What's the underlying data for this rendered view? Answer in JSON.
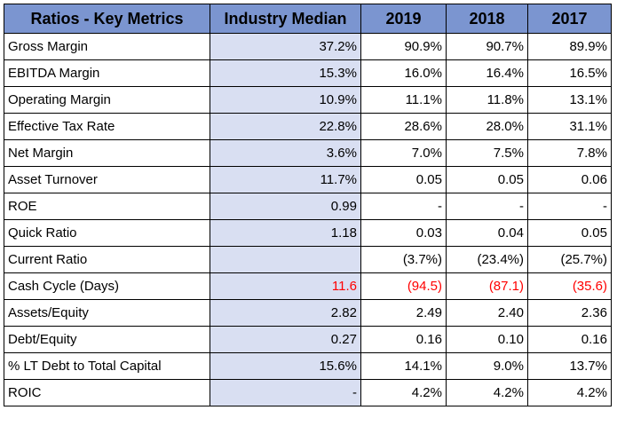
{
  "table": {
    "headers": [
      "Ratios - Key Metrics",
      "Industry Median",
      "2019",
      "2018",
      "2017"
    ],
    "rows": [
      {
        "metric": "Gross Margin",
        "median": "37.2%",
        "y2019": "90.9%",
        "y2018": "90.7%",
        "y2017": "89.9%"
      },
      {
        "metric": "EBITDA Margin",
        "median": "15.3%",
        "y2019": "16.0%",
        "y2018": "16.4%",
        "y2017": "16.5%"
      },
      {
        "metric": "Operating Margin",
        "median": "10.9%",
        "y2019": "11.1%",
        "y2018": "11.8%",
        "y2017": "13.1%"
      },
      {
        "metric": "Effective Tax Rate",
        "median": "22.8%",
        "y2019": "28.6%",
        "y2018": "28.0%",
        "y2017": "31.1%"
      },
      {
        "metric": "Net Margin",
        "median": "3.6%",
        "y2019": "7.0%",
        "y2018": "7.5%",
        "y2017": "7.8%"
      },
      {
        "metric": "Asset Turnover",
        "median": "11.7%",
        "y2019": "0.05",
        "y2018": "0.05",
        "y2017": "0.06"
      },
      {
        "metric": "ROE",
        "median": "0.99",
        "y2019": "-",
        "y2018": "-",
        "y2017": "-"
      },
      {
        "metric": "Quick Ratio",
        "median": "1.18",
        "y2019": "0.03",
        "y2018": "0.04",
        "y2017": "0.05"
      },
      {
        "metric": "Current Ratio",
        "median": "",
        "y2019": "(3.7%)",
        "y2018": "(23.4%)",
        "y2017": "(25.7%)"
      },
      {
        "metric": "Cash Cycle (Days)",
        "median": "11.6",
        "y2019": "(94.5)",
        "y2018": "(87.1)",
        "y2017": "(35.6)"
      },
      {
        "metric": "Assets/Equity",
        "median": "2.82",
        "y2019": "2.49",
        "y2018": "2.40",
        "y2017": "2.36"
      },
      {
        "metric": "Debt/Equity",
        "median": "0.27",
        "y2019": "0.16",
        "y2018": "0.10",
        "y2017": "0.16"
      },
      {
        "metric": "% LT Debt to Total Capital",
        "median": "15.6%",
        "y2019": "14.1%",
        "y2018": "9.0%",
        "y2017": "13.7%"
      },
      {
        "metric": "ROIC",
        "median": "-",
        "y2019": "4.2%",
        "y2018": "4.2%",
        "y2017": "4.2%"
      }
    ]
  },
  "colors": {
    "header_bg": "#7b95d0",
    "median_bg": "#d9dff2",
    "negative_highlight": "#ff0000"
  }
}
